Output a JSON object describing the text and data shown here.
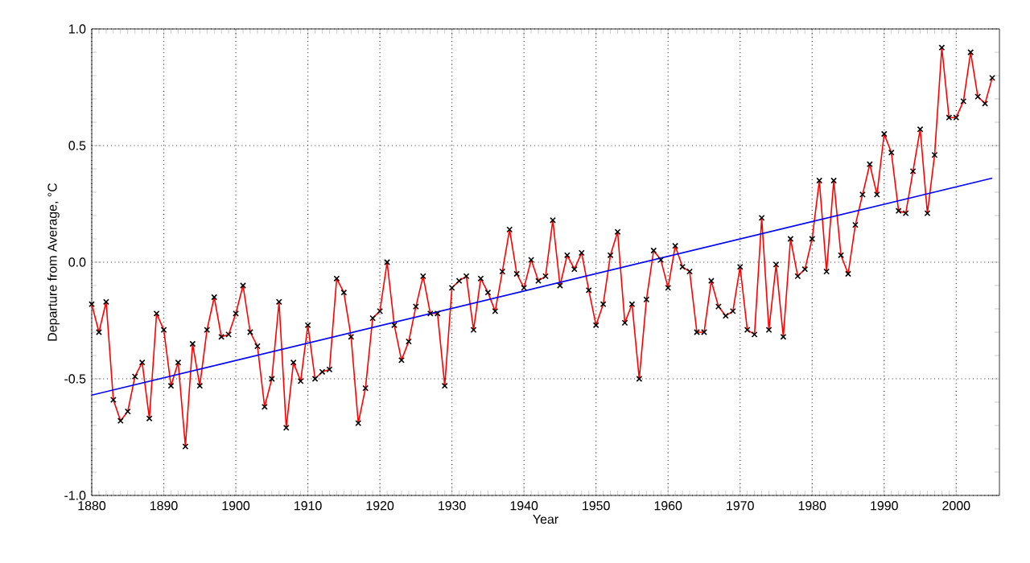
{
  "chart_data": {
    "type": "line",
    "xlabel": "Year",
    "ylabel": "Departure from Average, °C",
    "xlim": [
      1880,
      2006
    ],
    "ylim": [
      -1.0,
      1.0
    ],
    "xticks": [
      1880,
      1890,
      1900,
      1910,
      1920,
      1930,
      1940,
      1950,
      1960,
      1970,
      1980,
      1990,
      2000
    ],
    "yticks": [
      {
        "value": -1.0,
        "label": "-1.0"
      },
      {
        "value": -0.5,
        "label": "-0.5"
      },
      {
        "value": 0.0,
        "label": "0.0"
      },
      {
        "value": 0.5,
        "label": "0.5"
      },
      {
        "value": 1.0,
        "label": "1.0"
      }
    ],
    "grid": true,
    "x": [
      1880,
      1881,
      1882,
      1883,
      1884,
      1885,
      1886,
      1887,
      1888,
      1889,
      1890,
      1891,
      1892,
      1893,
      1894,
      1895,
      1896,
      1897,
      1898,
      1899,
      1900,
      1901,
      1902,
      1903,
      1904,
      1905,
      1906,
      1907,
      1908,
      1909,
      1910,
      1911,
      1912,
      1913,
      1914,
      1915,
      1916,
      1917,
      1918,
      1919,
      1920,
      1921,
      1922,
      1923,
      1924,
      1925,
      1926,
      1927,
      1928,
      1929,
      1930,
      1931,
      1932,
      1933,
      1934,
      1935,
      1936,
      1937,
      1938,
      1939,
      1940,
      1941,
      1942,
      1943,
      1944,
      1945,
      1946,
      1947,
      1948,
      1949,
      1950,
      1951,
      1952,
      1953,
      1954,
      1955,
      1956,
      1957,
      1958,
      1959,
      1960,
      1961,
      1962,
      1963,
      1964,
      1965,
      1966,
      1967,
      1968,
      1969,
      1970,
      1971,
      1972,
      1973,
      1974,
      1975,
      1976,
      1977,
      1978,
      1979,
      1980,
      1981,
      1982,
      1983,
      1984,
      1985,
      1986,
      1987,
      1988,
      1989,
      1990,
      1991,
      1992,
      1993,
      1994,
      1995,
      1996,
      1997,
      1998,
      1999,
      2000,
      2001,
      2002,
      2003,
      2004,
      2005
    ],
    "series": [
      {
        "color": "#ff0000",
        "marker": "cross",
        "line_style": "solid",
        "values": [
          -0.18,
          -0.3,
          -0.17,
          -0.59,
          -0.68,
          -0.64,
          -0.49,
          -0.43,
          -0.67,
          -0.22,
          -0.29,
          -0.53,
          -0.43,
          -0.79,
          -0.35,
          -0.53,
          -0.29,
          -0.15,
          -0.32,
          -0.31,
          -0.22,
          -0.1,
          -0.3,
          -0.36,
          -0.62,
          -0.5,
          -0.17,
          -0.71,
          -0.43,
          -0.51,
          -0.27,
          -0.5,
          -0.47,
          -0.46,
          -0.07,
          -0.13,
          -0.32,
          -0.69,
          -0.54,
          -0.24,
          -0.21,
          0.0,
          -0.27,
          -0.42,
          -0.34,
          -0.19,
          -0.06,
          -0.22,
          -0.22,
          -0.53,
          -0.11,
          -0.08,
          -0.06,
          -0.29,
          -0.07,
          -0.13,
          -0.21,
          -0.04,
          0.14,
          -0.05,
          -0.11,
          0.01,
          -0.08,
          -0.06,
          0.18,
          -0.1,
          0.03,
          -0.03,
          0.04,
          -0.12,
          -0.27,
          -0.18,
          0.03,
          0.13,
          -0.26,
          -0.18,
          -0.5,
          -0.16,
          0.05,
          0.01,
          -0.11,
          0.07,
          -0.02,
          -0.04,
          -0.3,
          -0.3,
          -0.08,
          -0.19,
          -0.23,
          -0.21,
          -0.02,
          -0.29,
          -0.31,
          0.19,
          -0.29,
          -0.01,
          -0.32,
          0.1,
          -0.06,
          -0.03,
          0.1,
          0.35,
          -0.04,
          0.35,
          0.03,
          -0.05,
          0.16,
          0.29,
          0.42,
          0.29,
          0.55,
          0.47,
          0.22,
          0.21,
          0.39,
          0.57,
          0.21,
          0.46,
          0.92,
          0.62,
          0.62,
          0.69,
          0.9,
          0.71,
          0.68,
          0.79
        ]
      },
      {
        "color": "#0000ff",
        "marker": "none",
        "line_style": "solid",
        "x": [
          1880,
          2005
        ],
        "values": [
          -0.57,
          0.36
        ]
      }
    ]
  }
}
